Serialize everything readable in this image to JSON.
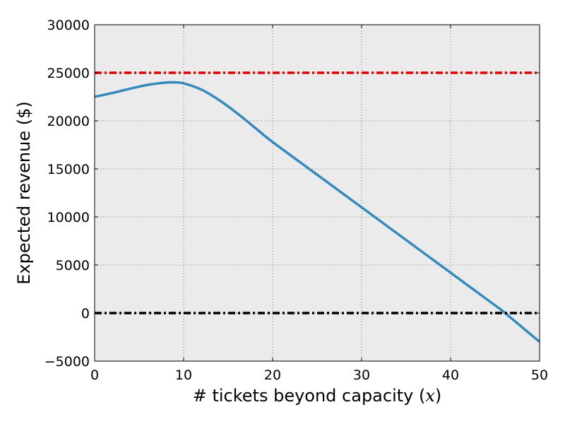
{
  "chart_data": {
    "type": "line",
    "title": "",
    "xlabel": "# tickets beyond capacity (x)",
    "xlabel_text": "# tickets beyond capacity (",
    "xlabel_var": "x",
    "xlabel_close": ")",
    "ylabel": "Expected revenue ($)",
    "xlim": [
      0,
      50
    ],
    "ylim": [
      -5000,
      30000
    ],
    "xticks": [
      0,
      10,
      20,
      30,
      40,
      50
    ],
    "xtick_labels": [
      "0",
      "10",
      "20",
      "30",
      "40",
      "50"
    ],
    "yticks": [
      -5000,
      0,
      5000,
      10000,
      15000,
      20000,
      25000,
      30000
    ],
    "ytick_labels": [
      "−5000",
      "0",
      "5000",
      "10000",
      "15000",
      "20000",
      "25000",
      "30000"
    ],
    "grid": true,
    "background": "#ebebeb",
    "series": [
      {
        "color": "#348abd",
        "style": "solid",
        "x": [
          0,
          2,
          4,
          6,
          8,
          9,
          10,
          12,
          14,
          16,
          18,
          20,
          25,
          30,
          35,
          40,
          45,
          46,
          50
        ],
        "y": [
          22500,
          22900,
          23350,
          23750,
          23980,
          24000,
          23900,
          23250,
          22150,
          20800,
          19300,
          17800,
          14400,
          11000,
          7600,
          4200,
          800,
          100,
          -3000
        ]
      },
      {
        "color": "#e00000",
        "style": "dashdot",
        "x": [
          0,
          50
        ],
        "y": [
          25000,
          25000
        ]
      },
      {
        "color": "#000000",
        "style": "dashdot",
        "x": [
          0,
          50
        ],
        "y": [
          0,
          0
        ]
      }
    ]
  }
}
